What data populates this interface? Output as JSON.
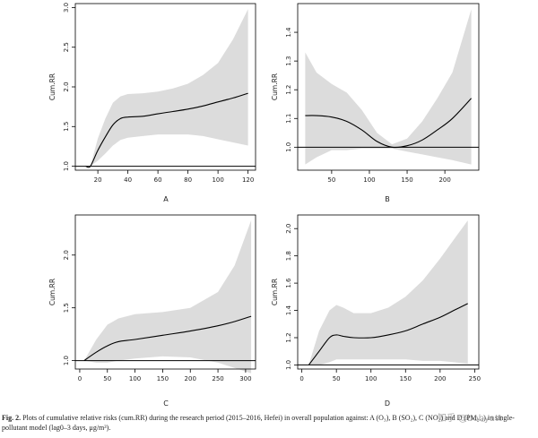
{
  "caption": {
    "fig": "Fig. 2.",
    "text": "Plots of cumulative relative risks (cum.RR) during the research period (2015–2016, Hefei) in overall population against: A (O₃), B (SO₂), C (NO₂) and D (PM₂.₅) in single-pollutant model (lag0–3 days, μg/m³)."
  },
  "watermark": "知乎 @bobyatt",
  "chart_data": [
    {
      "type": "line",
      "panel": "A",
      "ylabel": "Cum.RR",
      "xticks": [
        20,
        40,
        60,
        80,
        100,
        120
      ],
      "yticks": [
        1.0,
        1.5,
        2.0,
        2.5,
        3.0
      ],
      "ytick_labels": [
        "1.0",
        "1.5",
        "2.0",
        "2.5",
        "3.0"
      ],
      "xlim": [
        5,
        125
      ],
      "ylim": [
        0.95,
        3.05
      ],
      "reference_y": 1.0,
      "x": [
        12,
        15,
        20,
        25,
        30,
        35,
        40,
        50,
        60,
        70,
        80,
        90,
        100,
        110,
        120
      ],
      "estimate": [
        1.0,
        1.0,
        1.2,
        1.37,
        1.52,
        1.6,
        1.62,
        1.63,
        1.66,
        1.69,
        1.72,
        1.76,
        1.81,
        1.86,
        1.92
      ],
      "ci_lower": [
        1.0,
        1.0,
        1.07,
        1.16,
        1.26,
        1.33,
        1.36,
        1.38,
        1.4,
        1.4,
        1.4,
        1.38,
        1.34,
        1.3,
        1.26
      ],
      "ci_upper": [
        1.0,
        1.0,
        1.35,
        1.6,
        1.8,
        1.88,
        1.91,
        1.92,
        1.94,
        1.98,
        2.04,
        2.15,
        2.3,
        2.6,
        2.98
      ]
    },
    {
      "type": "line",
      "panel": "B",
      "ylabel": "Cum.RR",
      "xticks": [
        50,
        100,
        150,
        200
      ],
      "yticks": [
        1.0,
        1.1,
        1.2,
        1.3,
        1.4
      ],
      "ytick_labels": [
        "1.0",
        "1.1",
        "1.2",
        "1.3",
        "1.4"
      ],
      "xlim": [
        5,
        245
      ],
      "ylim": [
        0.92,
        1.5
      ],
      "reference_y": 1.0,
      "x": [
        15,
        30,
        50,
        70,
        90,
        110,
        130,
        150,
        170,
        190,
        210,
        235
      ],
      "estimate": [
        1.11,
        1.11,
        1.105,
        1.09,
        1.06,
        1.02,
        1.0,
        1.005,
        1.025,
        1.06,
        1.1,
        1.17
      ],
      "ci_lower": [
        0.94,
        0.965,
        0.99,
        0.99,
        0.995,
        0.995,
        0.995,
        0.985,
        0.975,
        0.965,
        0.955,
        0.94
      ],
      "ci_upper": [
        1.33,
        1.26,
        1.22,
        1.19,
        1.13,
        1.05,
        1.01,
        1.03,
        1.09,
        1.17,
        1.26,
        1.48
      ]
    },
    {
      "type": "line",
      "panel": "C",
      "ylabel": "Cum.RR",
      "xticks": [
        0,
        50,
        100,
        150,
        200,
        250,
        300
      ],
      "yticks": [
        1.0,
        1.5,
        2.0
      ],
      "ytick_labels": [
        "1.0",
        "1.5",
        "2.0"
      ],
      "xlim": [
        -8,
        318
      ],
      "ylim": [
        0.92,
        2.38
      ],
      "reference_y": 1.0,
      "x": [
        8,
        30,
        50,
        70,
        100,
        150,
        200,
        250,
        280,
        310
      ],
      "estimate": [
        1.0,
        1.08,
        1.14,
        1.18,
        1.2,
        1.24,
        1.28,
        1.33,
        1.37,
        1.42
      ],
      "ci_lower": [
        1.0,
        0.98,
        0.98,
        1.0,
        1.02,
        1.04,
        1.03,
        0.98,
        0.93,
        0.88
      ],
      "ci_upper": [
        1.0,
        1.2,
        1.34,
        1.4,
        1.44,
        1.46,
        1.5,
        1.65,
        1.9,
        2.33
      ]
    },
    {
      "type": "line",
      "panel": "D",
      "ylabel": "Cum.RR",
      "xticks": [
        0,
        50,
        100,
        150,
        200,
        250
      ],
      "yticks": [
        1.0,
        1.2,
        1.4,
        1.6,
        1.8,
        2.0
      ],
      "ytick_labels": [
        "1.0",
        "1.2",
        "1.4",
        "1.6",
        "1.8",
        "2.0"
      ],
      "xlim": [
        -6,
        256
      ],
      "ylim": [
        0.97,
        2.1
      ],
      "reference_y": 1.0,
      "x": [
        10,
        25,
        40,
        50,
        60,
        75,
        100,
        125,
        150,
        175,
        200,
        220,
        240
      ],
      "estimate": [
        1.0,
        1.1,
        1.2,
        1.22,
        1.21,
        1.2,
        1.2,
        1.22,
        1.25,
        1.3,
        1.35,
        1.4,
        1.45
      ],
      "ci_lower": [
        1.0,
        1.0,
        1.02,
        1.04,
        1.04,
        1.04,
        1.04,
        1.04,
        1.04,
        1.03,
        1.03,
        1.02,
        1.01
      ],
      "ci_upper": [
        1.0,
        1.25,
        1.4,
        1.44,
        1.42,
        1.38,
        1.38,
        1.42,
        1.5,
        1.62,
        1.78,
        1.92,
        2.06
      ]
    }
  ]
}
